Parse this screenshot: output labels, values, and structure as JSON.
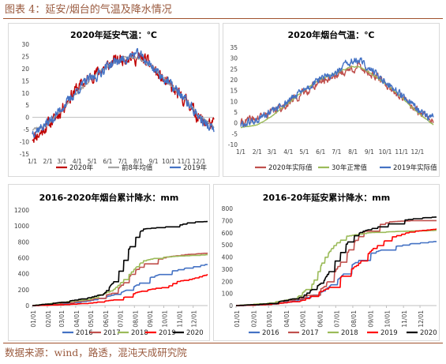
{
  "figure": {
    "title": "图表 4：延安/烟台的气温及降水情况",
    "source": "数据来源：wind，路透，混沌天成研究院"
  },
  "colors": {
    "red": "#c00000",
    "gray": "#a5a5a5",
    "blue": "#4472c4",
    "olive": "#9bbb59",
    "darkred": "#c0504d",
    "black": "#000000",
    "brown": "#a0522d"
  },
  "chart_data": [
    {
      "id": "yanan-temp",
      "type": "line",
      "title": "2020年延安气温：℃",
      "ylim": [
        -15,
        30
      ],
      "yticks": [
        -15,
        -10,
        -5,
        0,
        5,
        10,
        15,
        20,
        25,
        30
      ],
      "xticks": [
        "1/1",
        "2/1",
        "3/1",
        "4/1",
        "5/1",
        "6/1",
        "7/1",
        "8/1",
        "9/1",
        "10/1",
        "11/1",
        "12/1"
      ],
      "grid": false,
      "legend": "bottom",
      "series": [
        {
          "name": "2020年",
          "color": "#c00000",
          "anchors": [
            [
              1,
              -8
            ],
            [
              15,
              -7
            ],
            [
              31,
              -3
            ],
            [
              45,
              -1
            ],
            [
              59,
              3
            ],
            [
              75,
              8
            ],
            [
              90,
              12
            ],
            [
              105,
              14
            ],
            [
              120,
              17
            ],
            [
              135,
              19
            ],
            [
              150,
              21
            ],
            [
              165,
              23
            ],
            [
              180,
              24
            ],
            [
              195,
              25
            ],
            [
              210,
              24
            ],
            [
              225,
              24
            ],
            [
              240,
              21
            ],
            [
              255,
              17
            ],
            [
              270,
              14
            ],
            [
              285,
              11
            ],
            [
              300,
              8
            ],
            [
              315,
              6
            ],
            [
              330,
              1
            ],
            [
              345,
              -2
            ],
            [
              365,
              -3
            ]
          ],
          "noise": 4.0,
          "seed": 11
        },
        {
          "name": "前8年均值",
          "color": "#a5a5a5",
          "anchors": [
            [
              1,
              -5
            ],
            [
              31,
              -3
            ],
            [
              59,
              3
            ],
            [
              90,
              10
            ],
            [
              120,
              16
            ],
            [
              150,
              21
            ],
            [
              180,
              24
            ],
            [
              210,
              25
            ],
            [
              240,
              21
            ],
            [
              270,
              15
            ],
            [
              300,
              9
            ],
            [
              330,
              2
            ],
            [
              365,
              -4
            ]
          ],
          "noise": 1.0,
          "seed": 23
        },
        {
          "name": "2019年",
          "color": "#4472c4",
          "anchors": [
            [
              1,
              -6
            ],
            [
              20,
              -4
            ],
            [
              45,
              0
            ],
            [
              60,
              4
            ],
            [
              75,
              7
            ],
            [
              90,
              11
            ],
            [
              110,
              15
            ],
            [
              130,
              17
            ],
            [
              150,
              21
            ],
            [
              170,
              23
            ],
            [
              190,
              24
            ],
            [
              205,
              26
            ],
            [
              220,
              25
            ],
            [
              240,
              21
            ],
            [
              260,
              17
            ],
            [
              280,
              13
            ],
            [
              300,
              9
            ],
            [
              320,
              4
            ],
            [
              340,
              -1
            ],
            [
              355,
              -4
            ],
            [
              365,
              -5
            ]
          ],
          "noise": 3.2,
          "seed": 37
        }
      ]
    },
    {
      "id": "yantai-temp",
      "type": "line",
      "title": "2020年烟台气温：℃",
      "ylim": [
        -10,
        35
      ],
      "yticks": [
        -10,
        -5,
        0,
        5,
        10,
        15,
        20,
        25,
        30,
        35
      ],
      "xticks": [
        "1/1",
        "2/1",
        "3/1",
        "4/1",
        "5/1",
        "6/1",
        "7/1",
        "8/1",
        "9/1",
        "10/1",
        "11/1",
        "12/1"
      ],
      "grid": false,
      "legend": "bottom",
      "series": [
        {
          "name": "2020年实际值",
          "color": "#c0504d",
          "anchors": [
            [
              1,
              0
            ],
            [
              31,
              2
            ],
            [
              59,
              5
            ],
            [
              90,
              9
            ],
            [
              120,
              14
            ],
            [
              150,
              19
            ],
            [
              180,
              22
            ],
            [
              210,
              25
            ],
            [
              225,
              26
            ],
            [
              240,
              24
            ],
            [
              270,
              19
            ],
            [
              300,
              13
            ],
            [
              330,
              6
            ],
            [
              365,
              2
            ]
          ],
          "noise": 3.0,
          "seed": 41
        },
        {
          "name": "30年正常值",
          "color": "#9bbb59",
          "anchors": [
            [
              1,
              -2
            ],
            [
              31,
              -1
            ],
            [
              59,
              3
            ],
            [
              90,
              9
            ],
            [
              120,
              15
            ],
            [
              150,
              20
            ],
            [
              180,
              23
            ],
            [
              210,
              26
            ],
            [
              225,
              26
            ],
            [
              240,
              24
            ],
            [
              270,
              19
            ],
            [
              300,
              13
            ],
            [
              330,
              6
            ],
            [
              365,
              -1
            ]
          ],
          "noise": 0.3,
          "seed": 53
        },
        {
          "name": "2019年实际值",
          "color": "#4472c4",
          "anchors": [
            [
              1,
              -1
            ],
            [
              31,
              1
            ],
            [
              59,
              5
            ],
            [
              90,
              10
            ],
            [
              120,
              15
            ],
            [
              150,
              20
            ],
            [
              180,
              23
            ],
            [
              200,
              27
            ],
            [
              215,
              29
            ],
            [
              230,
              28
            ],
            [
              245,
              25
            ],
            [
              270,
              20
            ],
            [
              300,
              14
            ],
            [
              330,
              7
            ],
            [
              350,
              3
            ],
            [
              365,
              3
            ]
          ],
          "noise": 2.8,
          "seed": 61
        }
      ]
    },
    {
      "id": "yantai-precip",
      "type": "line",
      "title": "2016-2020年烟台累计降水：mm",
      "ylim": [
        0,
        1200
      ],
      "yticks": [
        0,
        200,
        400,
        600,
        800,
        1000,
        1200
      ],
      "xticks": [
        "01/01",
        "02/01",
        "03/01",
        "04/01",
        "05/01",
        "06/01",
        "07/01",
        "08/01",
        "09/01",
        "10/01",
        "11/01",
        "12/01"
      ],
      "grid": false,
      "legend": "bottom",
      "series": [
        {
          "name": "2016",
          "color": "#4472c4",
          "anchors": [
            [
              1,
              0
            ],
            [
              60,
              20
            ],
            [
              120,
              60
            ],
            [
              180,
              150
            ],
            [
              210,
              230
            ],
            [
              240,
              340
            ],
            [
              280,
              420
            ],
            [
              320,
              470
            ],
            [
              365,
              520
            ]
          ]
        },
        {
          "name": "2017",
          "color": "#c0504d",
          "anchors": [
            [
              1,
              0
            ],
            [
              60,
              30
            ],
            [
              120,
              70
            ],
            [
              170,
              160
            ],
            [
              190,
              280
            ],
            [
              210,
              420
            ],
            [
              240,
              550
            ],
            [
              280,
              610
            ],
            [
              320,
              640
            ],
            [
              365,
              660
            ]
          ]
        },
        {
          "name": "2018",
          "color": "#9bbb59",
          "anchors": [
            [
              1,
              0
            ],
            [
              60,
              40
            ],
            [
              120,
              80
            ],
            [
              170,
              200
            ],
            [
              190,
              320
            ],
            [
              210,
              440
            ],
            [
              230,
              560
            ],
            [
              260,
              600
            ],
            [
              300,
              620
            ],
            [
              365,
              640
            ]
          ]
        },
        {
          "name": "2019",
          "color": "#ff0000",
          "anchors": [
            [
              1,
              0
            ],
            [
              60,
              10
            ],
            [
              120,
              30
            ],
            [
              180,
              80
            ],
            [
              200,
              120
            ],
            [
              220,
              170
            ],
            [
              260,
              220
            ],
            [
              280,
              230
            ],
            [
              300,
              300
            ],
            [
              330,
              330
            ],
            [
              365,
              390
            ]
          ]
        },
        {
          "name": "2020",
          "color": "#000000",
          "anchors": [
            [
              1,
              0
            ],
            [
              60,
              40
            ],
            [
              120,
              100
            ],
            [
              150,
              150
            ],
            [
              170,
              300
            ],
            [
              185,
              480
            ],
            [
              200,
              700
            ],
            [
              215,
              850
            ],
            [
              230,
              960
            ],
            [
              260,
              980
            ],
            [
              300,
              1000
            ],
            [
              330,
              1050
            ],
            [
              365,
              1055
            ]
          ]
        }
      ]
    },
    {
      "id": "yanan-precip",
      "type": "line",
      "title": "2016-20年延安累计降水：mm",
      "ylim": [
        0,
        800
      ],
      "yticks": [
        0,
        100,
        200,
        300,
        400,
        500,
        600,
        700,
        800
      ],
      "xticks": [
        "01/01",
        "02/01",
        "03/01",
        "04/01",
        "05/01",
        "06/01",
        "07/01",
        "08/01",
        "09/01",
        "10/01",
        "11/01",
        "12/01"
      ],
      "grid": false,
      "legend": "bottom",
      "series": [
        {
          "name": "2016",
          "color": "#4472c4",
          "anchors": [
            [
              1,
              0
            ],
            [
              60,
              10
            ],
            [
              120,
              50
            ],
            [
              160,
              120
            ],
            [
              190,
              230
            ],
            [
              210,
              330
            ],
            [
              240,
              420
            ],
            [
              280,
              480
            ],
            [
              320,
              510
            ],
            [
              365,
              530
            ]
          ]
        },
        {
          "name": "2017",
          "color": "#c0504d",
          "anchors": [
            [
              1,
              0
            ],
            [
              60,
              15
            ],
            [
              120,
              60
            ],
            [
              160,
              150
            ],
            [
              180,
              280
            ],
            [
              200,
              420
            ],
            [
              220,
              550
            ],
            [
              240,
              640
            ],
            [
              280,
              690
            ],
            [
              320,
              700
            ],
            [
              365,
              700
            ]
          ]
        },
        {
          "name": "2018",
          "color": "#9bbb59",
          "anchors": [
            [
              1,
              0
            ],
            [
              60,
              20
            ],
            [
              110,
              60
            ],
            [
              140,
              180
            ],
            [
              160,
              380
            ],
            [
              180,
              500
            ],
            [
              200,
              570
            ],
            [
              240,
              600
            ],
            [
              290,
              610
            ],
            [
              365,
              620
            ]
          ]
        },
        {
          "name": "2019",
          "color": "#ff0000",
          "anchors": [
            [
              1,
              0
            ],
            [
              60,
              10
            ],
            [
              120,
              40
            ],
            [
              170,
              150
            ],
            [
              200,
              270
            ],
            [
              220,
              330
            ],
            [
              250,
              470
            ],
            [
              280,
              560
            ],
            [
              320,
              610
            ],
            [
              365,
              630
            ]
          ]
        },
        {
          "name": "2020",
          "color": "#000000",
          "anchors": [
            [
              1,
              0
            ],
            [
              60,
              15
            ],
            [
              120,
              70
            ],
            [
              160,
              200
            ],
            [
              180,
              360
            ],
            [
              200,
              500
            ],
            [
              210,
              560
            ],
            [
              230,
              610
            ],
            [
              260,
              650
            ],
            [
              300,
              700
            ],
            [
              330,
              720
            ],
            [
              365,
              730
            ]
          ]
        }
      ]
    }
  ]
}
